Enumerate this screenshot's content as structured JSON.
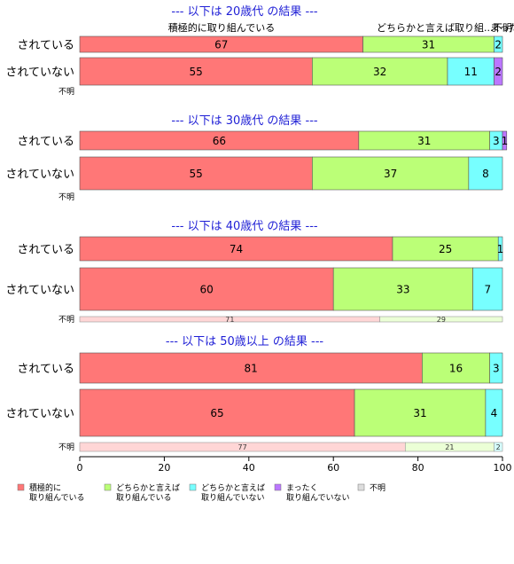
{
  "chart_data": {
    "type": "bar",
    "orientation": "horizontal",
    "stacked": true,
    "xlim": [
      0,
      100
    ],
    "x_ticks": [
      "0",
      "20",
      "40",
      "60",
      "80",
      "100"
    ],
    "categories": [
      {
        "key": "active",
        "name": "積極的に\n取り組んでいる",
        "color": "#ff7777"
      },
      {
        "key": "somewhat",
        "name": "どちらかと言えば\n取り組んでいる",
        "color": "#bbff77"
      },
      {
        "key": "somewhat_not",
        "name": "どちらかと言えば\n取り組んでいない",
        "color": "#77ffff"
      },
      {
        "key": "not_at_all",
        "name": "まったく\n取り組んでいない",
        "color": "#bb77ff"
      },
      {
        "key": "unknown",
        "name": "不明",
        "color": "#dddddd"
      }
    ],
    "category_labels_top": [
      "積極的に取り組んでいる",
      "どちらかと言えば取り組...",
      "まったく...",
      "不明"
    ],
    "groups": [
      {
        "title": "--- 以下は 20歳代 の結果 ---",
        "rows": [
          {
            "label": "されている",
            "values": [
              67,
              31,
              2,
              0,
              0
            ]
          },
          {
            "label": "されていない",
            "values": [
              55,
              32,
              11,
              2,
              0
            ]
          },
          {
            "label": "不明",
            "values": []
          }
        ]
      },
      {
        "title": "--- 以下は 30歳代 の結果 ---",
        "rows": [
          {
            "label": "されている",
            "values": [
              66,
              31,
              3,
              1,
              0
            ]
          },
          {
            "label": "されていない",
            "values": [
              55,
              37,
              8,
              0,
              0
            ]
          },
          {
            "label": "不明",
            "values": []
          }
        ]
      },
      {
        "title": "--- 以下は 40歳代 の結果 ---",
        "rows": [
          {
            "label": "されている",
            "values": [
              74,
              25,
              1,
              0,
              0
            ]
          },
          {
            "label": "されていない",
            "values": [
              60,
              33,
              7,
              0,
              0
            ]
          },
          {
            "label": "不明",
            "values": [
              71,
              29,
              0,
              0,
              0
            ]
          }
        ]
      },
      {
        "title": "--- 以下は 50歳以上 の結果 ---",
        "rows": [
          {
            "label": "されている",
            "values": [
              81,
              16,
              3,
              0,
              0
            ]
          },
          {
            "label": "されていない",
            "values": [
              65,
              31,
              4,
              0,
              0
            ]
          },
          {
            "label": "不明",
            "values": [
              77,
              21,
              2,
              0,
              0
            ]
          }
        ]
      }
    ]
  }
}
